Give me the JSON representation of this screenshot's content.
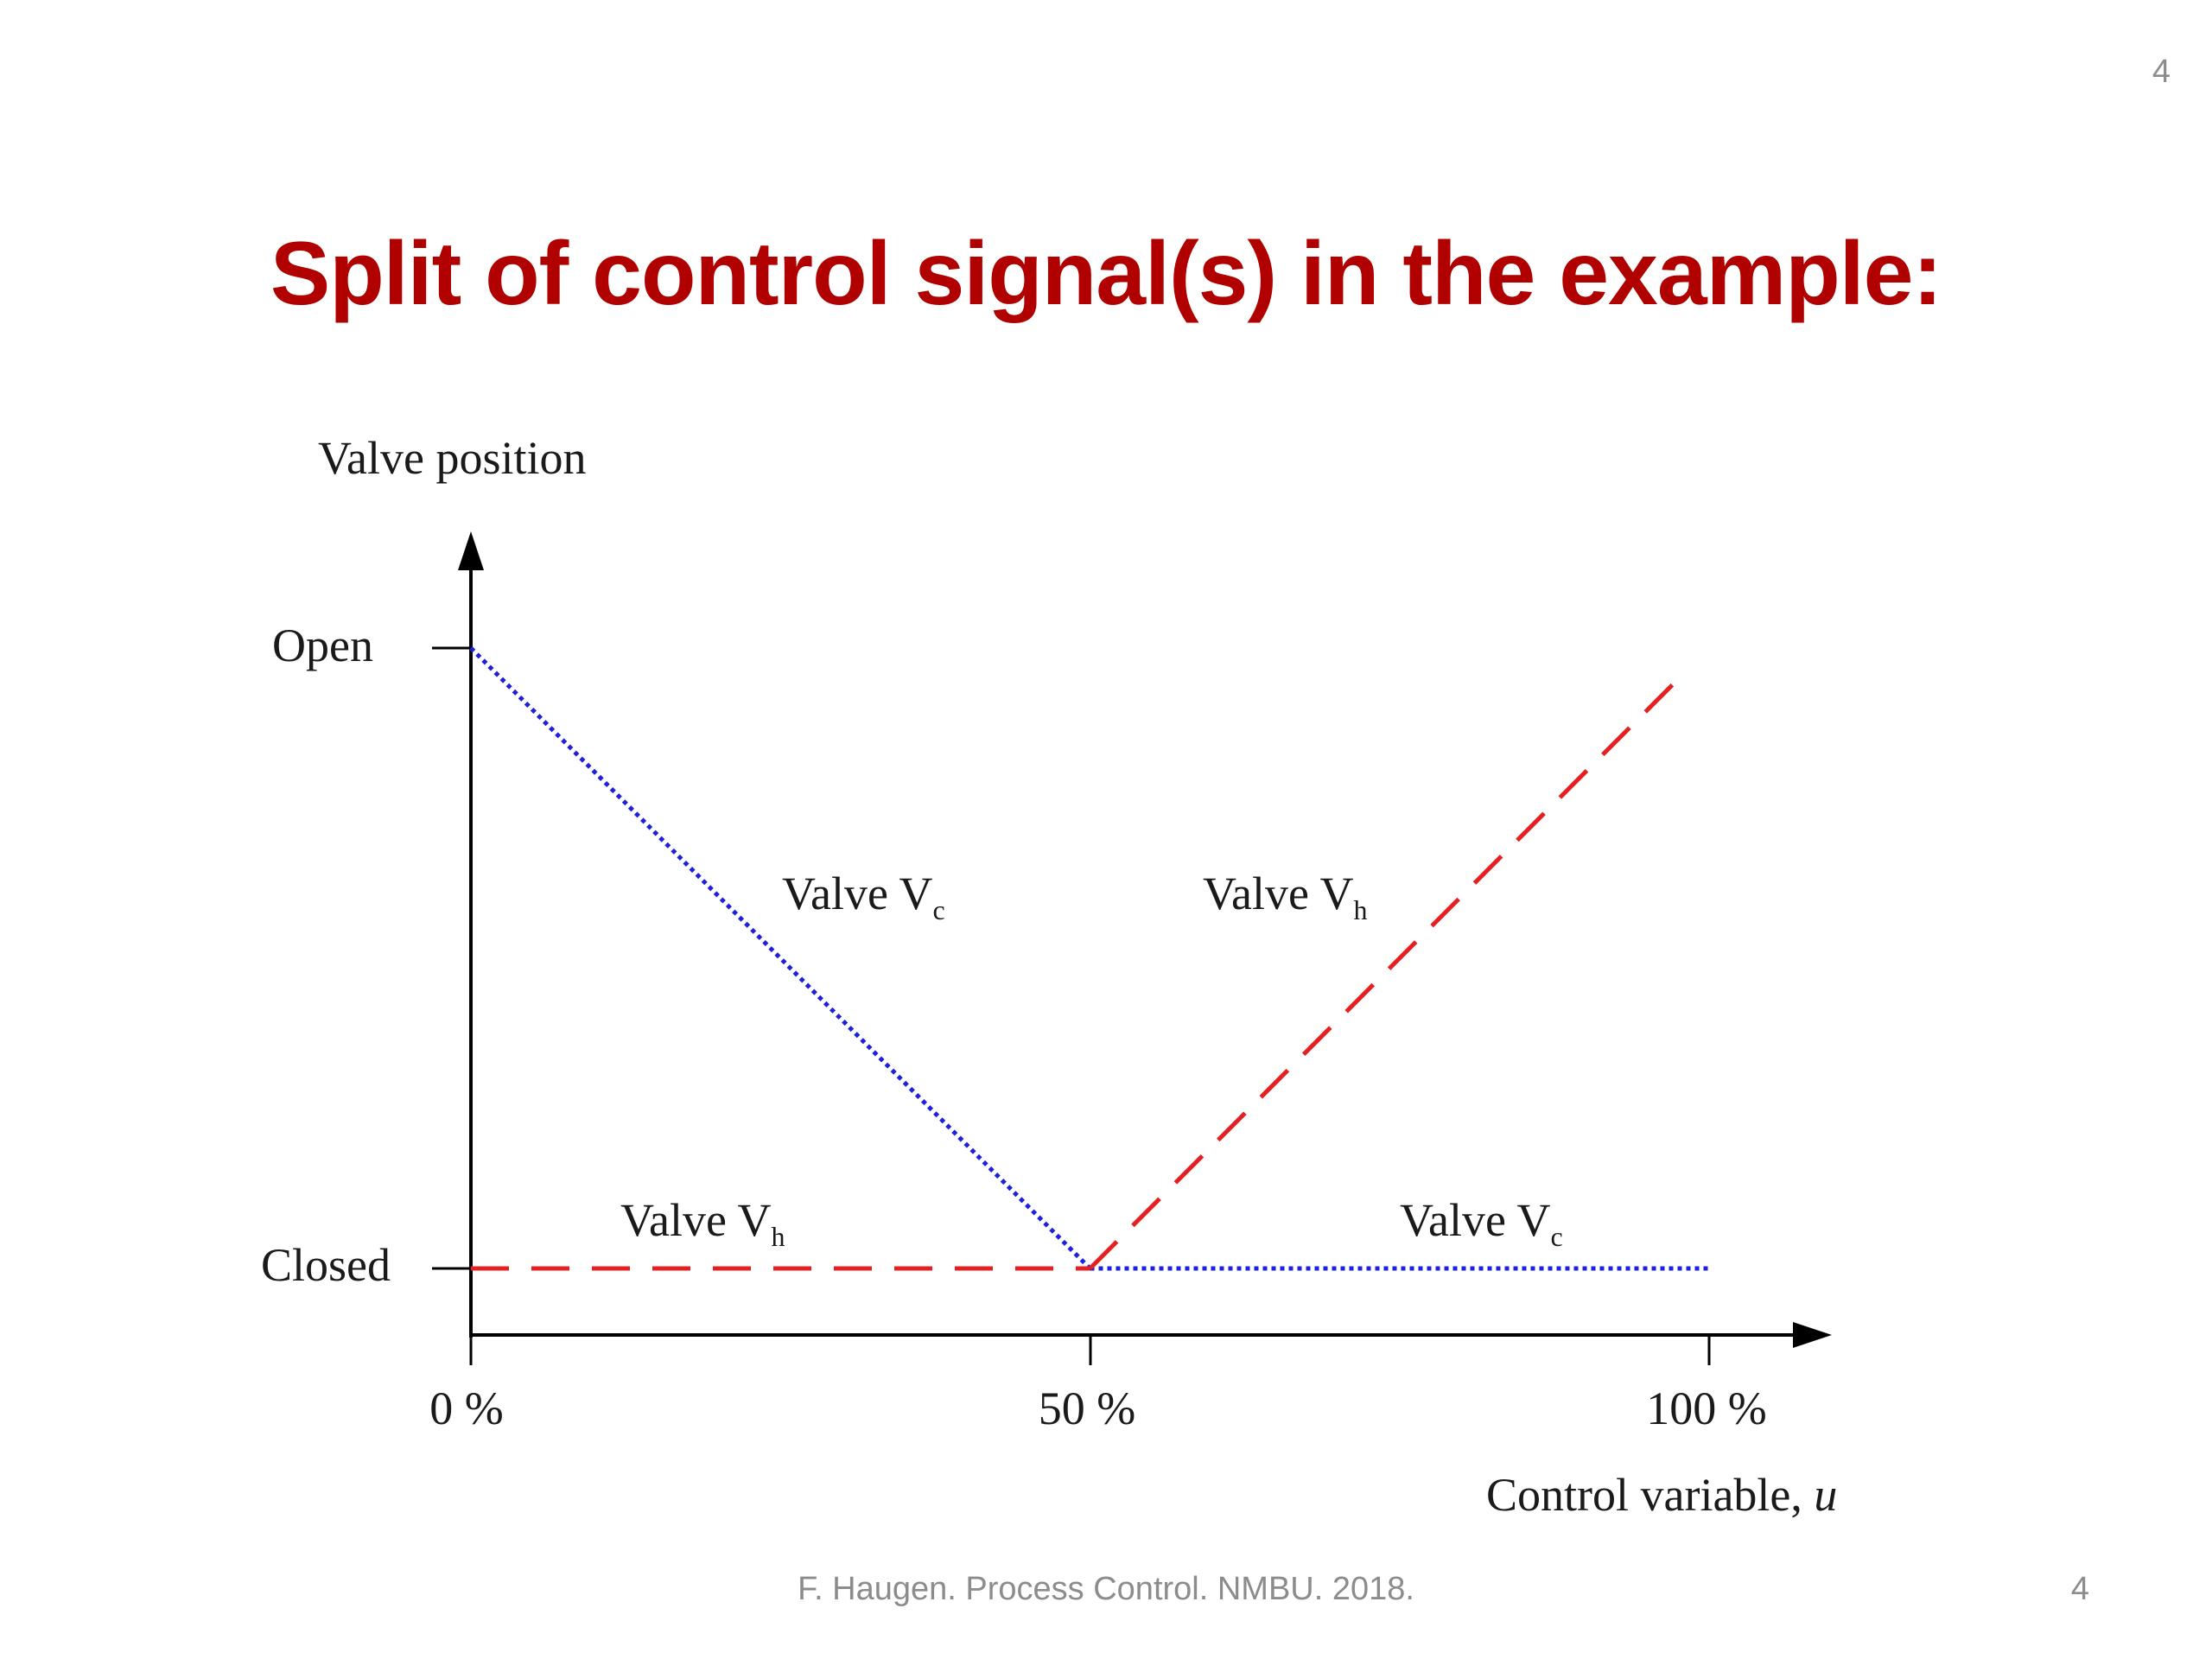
{
  "slide": {
    "title": "Split of control signal(s) in the example:",
    "page_number": "4",
    "footer": "F. Haugen. Process Control. NMBU. 2018."
  },
  "chart_data": {
    "type": "line",
    "ylabel": "Valve position",
    "xlabel": "Control variable, u",
    "x_ticks": [
      "0 %",
      "50 %",
      "100 %"
    ],
    "x_tick_values": [
      0,
      50,
      100
    ],
    "y_ticks": [
      "Open",
      "Closed"
    ],
    "y_tick_values": [
      1,
      0
    ],
    "xlim": [
      0,
      100
    ],
    "ylim": [
      0,
      1
    ],
    "grid": false,
    "series": [
      {
        "segments": [
          {
            "label": "Valve V",
            "subscript": "c",
            "points": [
              [
                0,
                1
              ],
              [
                50,
                0
              ]
            ]
          },
          {
            "label": "Valve V",
            "subscript": "c",
            "points": [
              [
                50,
                0
              ],
              [
                100,
                0
              ]
            ]
          }
        ],
        "color": "#1f1fe0",
        "style": "dotted"
      },
      {
        "segments": [
          {
            "label": "Valve V",
            "subscript": "h",
            "points": [
              [
                0,
                0
              ],
              [
                50,
                0
              ]
            ]
          },
          {
            "label": "Valve V",
            "subscript": "h",
            "points": [
              [
                50,
                0
              ],
              [
                98,
                0.96
              ]
            ]
          }
        ],
        "color": "#e62020",
        "style": "dashed"
      }
    ]
  }
}
